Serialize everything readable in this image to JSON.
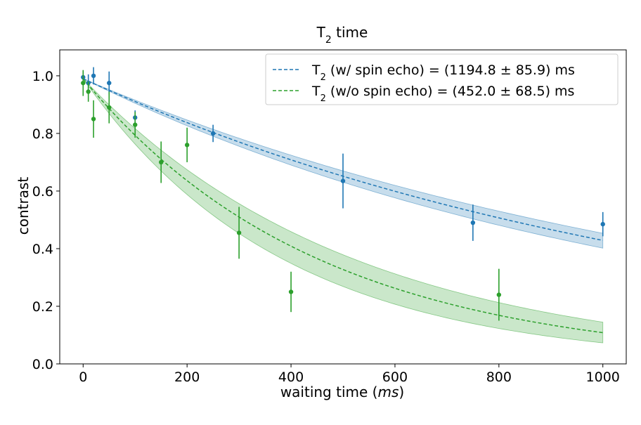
{
  "chart_data": {
    "type": "scatter",
    "title": "T",
    "title_subscript": "2",
    "title_suffix": " time",
    "xlabel": "waiting time ",
    "xlabel_unit": "ms",
    "xlabel_unit_open": "(",
    "xlabel_unit_close": ")",
    "ylabel": "contrast",
    "xlim": [
      -45,
      1045
    ],
    "ylim": [
      0.0,
      1.09
    ],
    "xticks": [
      0,
      200,
      400,
      600,
      800,
      1000
    ],
    "yticks": [
      0.0,
      0.2,
      0.4,
      0.6,
      0.8,
      1.0
    ],
    "xtick_labels": [
      "0",
      "200",
      "400",
      "600",
      "800",
      "1000"
    ],
    "ytick_labels": [
      "0.0",
      "0.2",
      "0.4",
      "0.6",
      "0.8",
      "1.0"
    ],
    "grid": false,
    "legend_position": "upper-right",
    "series": [
      {
        "legend_prefix": "T",
        "legend_sub": "2",
        "legend_suffix": " (w/ spin echo) = (1194.8 ± 85.9) ms",
        "color": "#1f77b4",
        "fit": {
          "T2": 1194.8,
          "T2_err": 85.9,
          "amplitude": 0.99,
          "offset": 0.0
        },
        "points": [
          {
            "x": 0,
            "y": 0.995,
            "err": 0.02
          },
          {
            "x": 10,
            "y": 0.975,
            "err": 0.03
          },
          {
            "x": 20,
            "y": 1.0,
            "err": 0.03
          },
          {
            "x": 50,
            "y": 0.975,
            "err": 0.04
          },
          {
            "x": 100,
            "y": 0.855,
            "err": 0.025
          },
          {
            "x": 250,
            "y": 0.8,
            "err": 0.03
          },
          {
            "x": 500,
            "y": 0.635,
            "err": 0.095
          },
          {
            "x": 750,
            "y": 0.49,
            "err": 0.063
          },
          {
            "x": 1000,
            "y": 0.485,
            "err": 0.042
          }
        ]
      },
      {
        "legend_prefix": "T",
        "legend_sub": "2",
        "legend_suffix": " (w/o spin echo) = (452.0 ± 68.5) ms",
        "color": "#2ca02c",
        "fit": {
          "T2": 452.0,
          "T2_err": 68.5,
          "amplitude": 0.99,
          "offset": 0.0
        },
        "points": [
          {
            "x": 0,
            "y": 0.975,
            "err": 0.045
          },
          {
            "x": 10,
            "y": 0.945,
            "err": 0.035
          },
          {
            "x": 20,
            "y": 0.85,
            "err": 0.065
          },
          {
            "x": 50,
            "y": 0.89,
            "err": 0.055
          },
          {
            "x": 100,
            "y": 0.83,
            "err": 0.045
          },
          {
            "x": 150,
            "y": 0.7,
            "err": 0.072
          },
          {
            "x": 200,
            "y": 0.76,
            "err": 0.06
          },
          {
            "x": 300,
            "y": 0.455,
            "err": 0.09
          },
          {
            "x": 400,
            "y": 0.25,
            "err": 0.07
          },
          {
            "x": 800,
            "y": 0.24,
            "err": 0.09
          }
        ]
      }
    ]
  }
}
